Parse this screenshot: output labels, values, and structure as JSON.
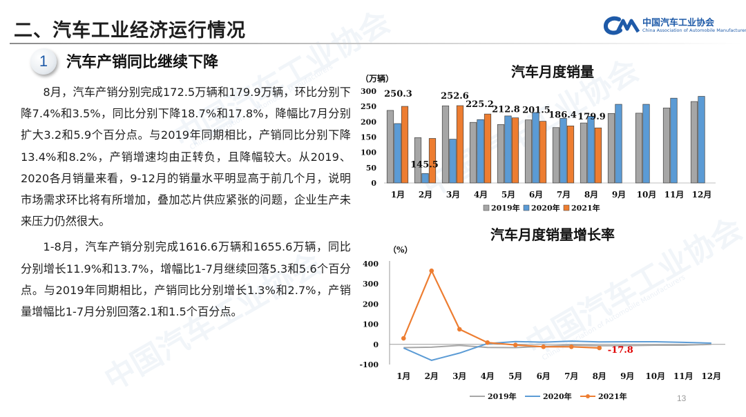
{
  "header": {
    "title": "二、汽车工业经济运行情况",
    "logo_cn": "中国汽车工业协会",
    "logo_en": "China Association of Automobile Manufacturers"
  },
  "section": {
    "number": "1",
    "title": "汽车产销同比继续下降"
  },
  "body": {
    "p1": "8月，汽车产销分别完成172.5万辆和179.9万辆，环比分别下降7.4%和3.5%，同比分别下降18.7%和17.8%，降幅比7月分别扩大3.2和5.9个百分点。与2019年同期相比，产销同比分别下降13.4%和8.2%，产销增速均由正转负，且降幅较大。从2019、2020各月销量来看，9-12月的销量水平明显高于前几个月，说明市场需求环比将有所增加，叠加芯片供应紧张的问题，企业生产未来压力仍然很大。",
    "p2": "1-8月，汽车产销分别完成1616.6万辆和1655.6万辆，同比分别增长11.9%和13.7%，增幅比1-7月继续回落5.3和5.6个百分点。与2019年同期相比，产销同比分别增长1.3%和2.7%，产销量增幅比1-7月分别回落2.1和1.5个百分点。"
  },
  "watermark": {
    "cn": "中国汽车工业协会",
    "en": "China Association of Automobile Manufacturers"
  },
  "page_number": "13",
  "colors": {
    "s2019": "#a6a6a6",
    "s2020": "#5b9bd5",
    "s2021": "#ed7d31",
    "accent": "#1e5aa8",
    "label_red": "#e00000"
  },
  "chart_data": [
    {
      "type": "bar",
      "title": "汽车月度销量",
      "ylabel": "（万辆）",
      "ylim": [
        0,
        300
      ],
      "yticks": [
        0,
        50,
        100,
        150,
        200,
        250,
        300
      ],
      "categories": [
        "1月",
        "2月",
        "3月",
        "4月",
        "5月",
        "6月",
        "7月",
        "8月",
        "9月",
        "10月",
        "11月",
        "12月"
      ],
      "series": [
        {
          "name": "2019年",
          "values": [
            237,
            148,
            252,
            198,
            191,
            206,
            181,
            196,
            227,
            228,
            245,
            266
          ]
        },
        {
          "name": "2020年",
          "values": [
            194,
            31,
            143,
            207,
            219,
            230,
            211,
            218,
            257,
            257,
            277,
            283
          ]
        },
        {
          "name": "2021年",
          "values": [
            250.3,
            145.5,
            252.6,
            225.2,
            212.8,
            201.5,
            186.4,
            179.9,
            null,
            null,
            null,
            null
          ]
        }
      ],
      "data_labels": [
        "250.3",
        "145.5",
        "252.6",
        "225.2",
        "212.8",
        "201.5",
        "186.4",
        "179.9"
      ],
      "legend": "bottom"
    },
    {
      "type": "line",
      "title": "汽车月度销量增长率",
      "ylabel": "（%）",
      "ylim": [
        -100,
        400
      ],
      "yticks": [
        -100,
        0,
        100,
        200,
        300,
        400
      ],
      "categories": [
        "1月",
        "2月",
        "3月",
        "4月",
        "5月",
        "6月",
        "7月",
        "8月",
        "9月",
        "10月",
        "11月",
        "12月"
      ],
      "series": [
        {
          "name": "2019年",
          "values": [
            -16,
            -14,
            -5,
            -15,
            -16,
            -10,
            -4,
            -7,
            -6,
            -4,
            -4,
            0
          ]
        },
        {
          "name": "2020年",
          "values": [
            -18,
            -79,
            -43,
            4,
            14,
            11,
            16,
            12,
            13,
            13,
            10,
            6
          ]
        },
        {
          "name": "2021年",
          "values": [
            30,
            365,
            75,
            9,
            -3,
            -12,
            -12,
            -17.8,
            null,
            null,
            null,
            null
          ]
        }
      ],
      "end_label": "-17.8",
      "legend": "bottom"
    }
  ]
}
